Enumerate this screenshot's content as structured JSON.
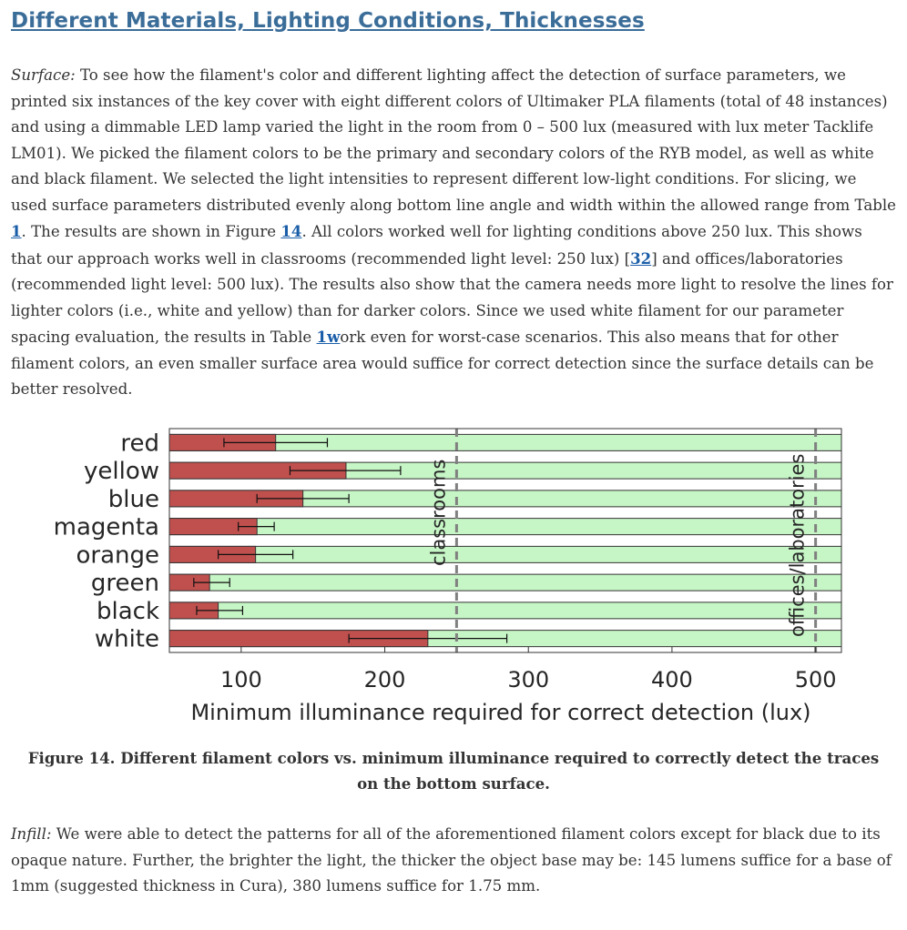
{
  "heading": "Different Materials, Lighting Conditions, Thicknesses",
  "surface": {
    "lead": "Surface:",
    "t1": " To see how the filament's color and different lighting affect the detection of surface parameters, we printed six instances of the key cover with eight different colors of Ultimaker PLA filaments (total of 48 instances) and using a dimmable LED lamp varied the light in the room from 0 – 500 lux (measured with lux meter Tacklife LM01). We picked the filament colors to be the primary and secondary colors of the RYB model, as well as white and black filament. We selected the light intensities to represent different low-light conditions. For slicing, we used surface parameters distributed evenly along bottom line angle and width within the allowed range from Table ",
    "link1": "1",
    "t2": ". The results are shown in Figure ",
    "link2": "14",
    "t3": ". All colors worked well for lighting conditions above 250 lux. This shows that our approach works well in classrooms (recommended light level: 250 lux) [",
    "link3": "32",
    "t4": "] and offices/laboratories (recommended light level: 500 lux). The results also show that the camera needs more light to resolve the lines for lighter colors (i.e., white and yellow) than for darker colors. Since we used white filament for our parameter spacing evaluation, the results in Table ",
    "link4": "1w",
    "t5": "ork even for worst-case scenarios. This also means that for other filament colors, an even smaller surface area would suffice for correct detection since the surface details can be better resolved."
  },
  "chart_data": {
    "type": "bar",
    "orientation": "horizontal",
    "categories": [
      "red",
      "yellow",
      "blue",
      "magenta",
      "orange",
      "green",
      "black",
      "white"
    ],
    "values": [
      124,
      173,
      143,
      111,
      110,
      78,
      84,
      230
    ],
    "error_low": [
      88,
      134,
      111,
      98,
      84,
      67,
      69,
      175
    ],
    "error_high": [
      160,
      211,
      175,
      123,
      136,
      92,
      101,
      285
    ],
    "xlim": [
      50,
      518
    ],
    "xticks": [
      100,
      200,
      300,
      400,
      500
    ],
    "xlabel": "Minimum illuminance required for correct detection (lux)",
    "ylabel": "",
    "reference_lines": [
      {
        "label": "classrooms",
        "value": 250
      },
      {
        "label": "offices/laboratories",
        "value": 500
      }
    ],
    "bar_color": "#c0504d",
    "background_color": "#c6f5c6",
    "reference_line_color": "#808080"
  },
  "caption": "Figure 14. Different filament colors vs. minimum illuminance required to correctly detect the traces on the bottom surface.",
  "infill": {
    "lead": "Infill:",
    "text": " We were able to detect the patterns for all of the aforementioned filament colors except for black due to its opaque nature. Further, the brighter the light, the thicker the object base may be: 145 lumens suffice for a base of 1mm (suggested thickness in Cura), 380 lumens suffice for 1.75 mm."
  }
}
